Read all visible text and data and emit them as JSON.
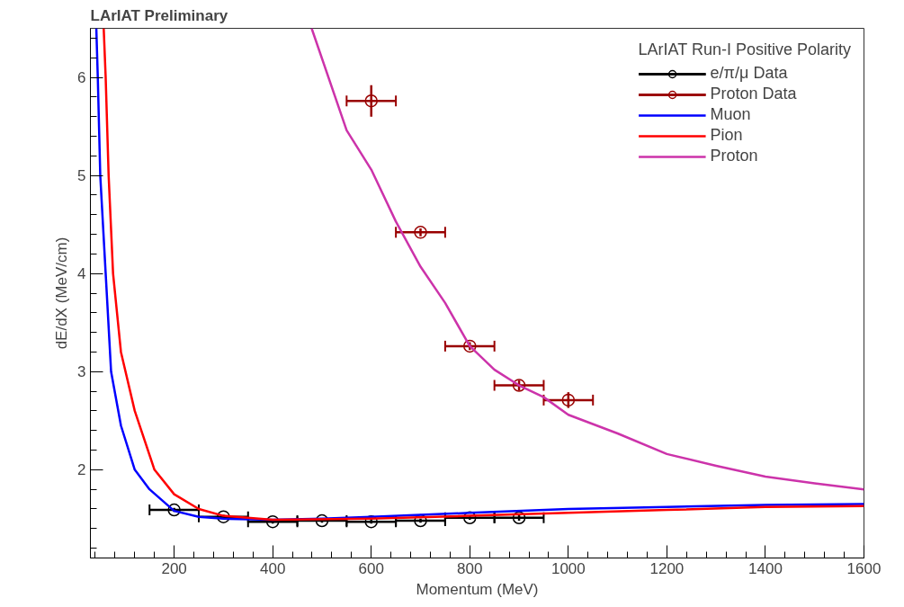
{
  "chart_data": {
    "type": "line",
    "title": "LArIAT Preliminary",
    "xlabel": "Momentum (MeV)",
    "ylabel": "dE/dX (MeV/cm)",
    "legend_title": "LArIAT Run-I Positive Polarity",
    "legend": "top right",
    "grid": false,
    "xlim": [
      30,
      1600
    ],
    "ylim": [
      1.1,
      6.5
    ],
    "xticks": [
      200,
      400,
      600,
      800,
      1000,
      1200,
      1400,
      1600
    ],
    "yticks": [
      2,
      3,
      4,
      5,
      6
    ],
    "series": [
      {
        "name": "e/π/μ Data",
        "type": "scatter",
        "marker": "circle",
        "color": "#000000",
        "x": [
          200,
          300,
          400,
          500,
          600,
          700,
          800,
          900
        ],
        "values": [
          1.59,
          1.52,
          1.47,
          1.48,
          1.47,
          1.48,
          1.51,
          1.51
        ],
        "xerrors": [
          50,
          50,
          50,
          50,
          50,
          50,
          50,
          50
        ],
        "errors": [
          0.02,
          0.02,
          0.02,
          0.02,
          0.02,
          0.02,
          0.02,
          0.03
        ]
      },
      {
        "name": "Proton Data",
        "type": "scatter",
        "marker": "circle",
        "color": "#990000",
        "x": [
          600,
          700,
          800,
          900,
          1000
        ],
        "values": [
          5.76,
          4.42,
          3.26,
          2.86,
          2.71
        ],
        "xerrors": [
          50,
          50,
          50,
          50,
          50
        ],
        "errors": [
          0.16,
          0.04,
          0.04,
          0.05,
          0.08
        ]
      },
      {
        "name": "Muon",
        "marker": "none",
        "color": "#0000ff",
        "x": [
          42,
          45,
          50,
          61,
          72,
          92,
          120,
          150,
          200,
          250,
          300,
          400,
          500,
          600,
          800,
          1000,
          1200,
          1400,
          1600
        ],
        "values": [
          6.5,
          6.0,
          5.0,
          4.0,
          3.0,
          2.45,
          2.0,
          1.8,
          1.58,
          1.52,
          1.5,
          1.49,
          1.5,
          1.52,
          1.56,
          1.6,
          1.62,
          1.64,
          1.65
        ]
      },
      {
        "name": "Pion",
        "marker": "none",
        "color": "#ff0000",
        "x": [
          57,
          61,
          67,
          76,
          92,
          120,
          160,
          200,
          250,
          300,
          400,
          600,
          800,
          1000,
          1200,
          1400,
          1600
        ],
        "values": [
          6.5,
          6.0,
          5.0,
          4.0,
          3.2,
          2.6,
          2.0,
          1.75,
          1.6,
          1.53,
          1.49,
          1.5,
          1.53,
          1.56,
          1.59,
          1.62,
          1.63
        ]
      },
      {
        "name": "Proton",
        "marker": "none",
        "color": "#cc33aa",
        "x": [
          479,
          550,
          600,
          650,
          700,
          750,
          800,
          850,
          900,
          950,
          1000,
          1100,
          1200,
          1300,
          1400,
          1500,
          1600
        ],
        "values": [
          6.5,
          5.46,
          5.06,
          4.53,
          4.07,
          3.7,
          3.26,
          3.02,
          2.86,
          2.74,
          2.56,
          2.37,
          2.16,
          2.04,
          1.93,
          1.86,
          1.8
        ]
      }
    ]
  }
}
